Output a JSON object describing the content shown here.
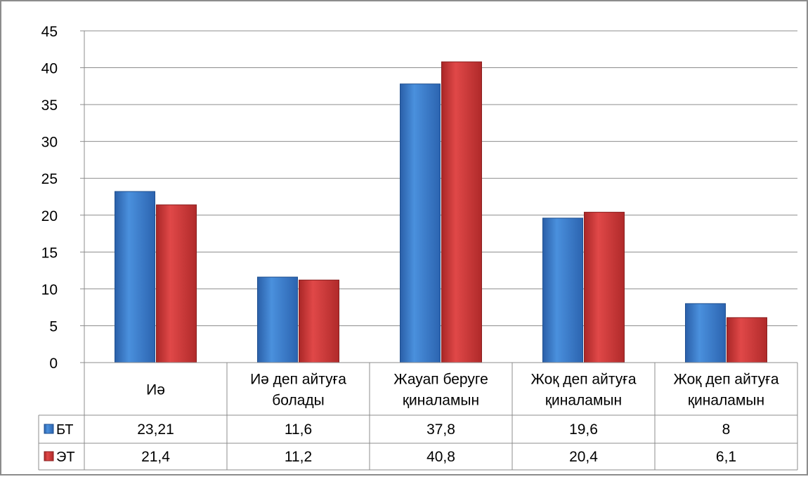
{
  "chart_data": {
    "type": "bar",
    "title": "",
    "xlabel": "",
    "ylabel": "",
    "ylim": [
      0,
      45
    ],
    "yticks": [
      0,
      5,
      10,
      15,
      20,
      25,
      30,
      35,
      40,
      45
    ],
    "grid": true,
    "legend": "data-table",
    "categories": [
      [
        "Иә"
      ],
      [
        "Иә деп айтуға",
        "болады"
      ],
      [
        "Жауап беруге",
        "қиналамын"
      ],
      [
        "Жоқ деп айтуға",
        "қиналамын"
      ],
      [
        "Жоқ деп айтуға",
        "қиналамын"
      ]
    ],
    "series": [
      {
        "name": "БТ",
        "color": "#3d7fd0",
        "values": [
          23.21,
          11.6,
          37.8,
          19.6,
          8
        ],
        "labels": [
          "23,21",
          "11,6",
          "37,8",
          "19,6",
          "8"
        ]
      },
      {
        "name": "ЭТ",
        "color": "#d23b3b",
        "values": [
          21.4,
          11.2,
          40.8,
          20.4,
          6.1
        ],
        "labels": [
          "21,4",
          "11,2",
          "40,8",
          "20,4",
          "6,1"
        ]
      }
    ]
  }
}
